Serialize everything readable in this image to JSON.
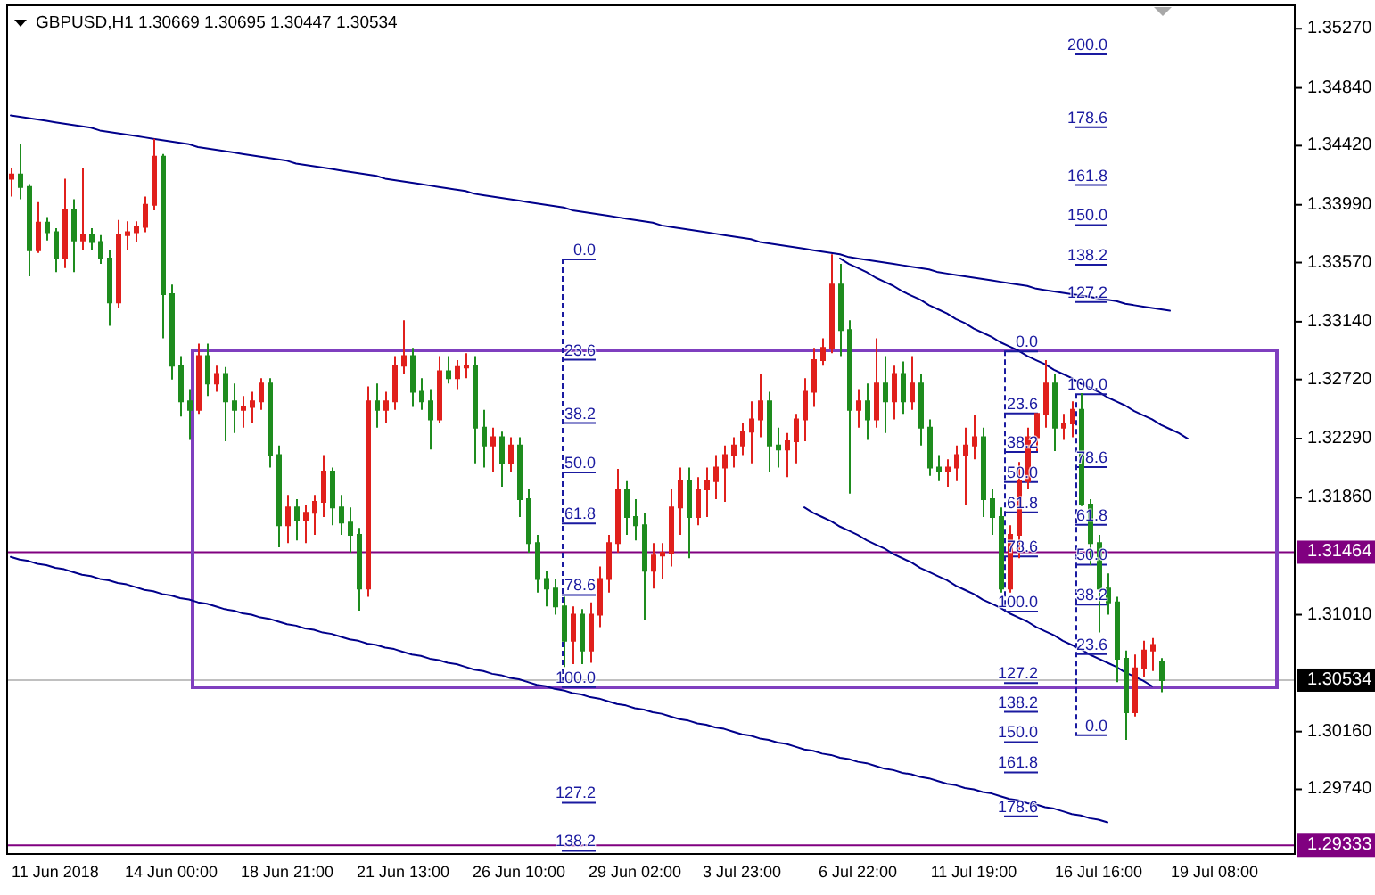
{
  "chart_data": {
    "type": "candlestick",
    "title": "GBPUSD,H1 1.30669 1.30695 1.30447 1.30534",
    "categories": [
      null,
      null,
      null,
      null,
      null,
      "11 Jun 2018",
      null,
      null,
      null,
      null,
      null,
      null,
      null,
      null,
      null,
      null,
      null,
      null,
      "14 Jun 00:00",
      null,
      null,
      null,
      null,
      null,
      null,
      null,
      null,
      null,
      null,
      null,
      null,
      "18 Jun 21:00",
      null,
      null,
      null,
      null,
      null,
      null,
      null,
      null,
      null,
      null,
      null,
      null,
      "21 Jun 13:00",
      null,
      null,
      null,
      null,
      null,
      null,
      null,
      null,
      null,
      null,
      null,
      null,
      "26 Jun 10:00",
      null,
      null,
      null,
      null,
      null,
      null,
      null,
      null,
      null,
      null,
      null,
      null,
      "29 Jun 02:00",
      null,
      null,
      null,
      null,
      null,
      null,
      null,
      null,
      null,
      null,
      null,
      "3 Jul 23:00",
      null,
      null,
      null,
      null,
      null,
      null,
      null,
      null,
      null,
      null,
      null,
      null,
      "6 Jul 22:00",
      null,
      null,
      null,
      null,
      null,
      null,
      null,
      null,
      null,
      null,
      null,
      null,
      "11 Jul 19:00",
      null,
      null,
      null,
      null,
      null,
      null,
      null,
      null,
      null,
      null,
      null,
      null,
      null,
      "16 Jul 16:00",
      null,
      null,
      null,
      null,
      null,
      null,
      null,
      null,
      null,
      null,
      null,
      null,
      "19 Jul 08:00",
      null,
      null,
      null,
      null,
      null,
      null,
      null,
      null,
      null
    ],
    "ohlc": [
      [
        1.3418,
        1.3426,
        1.3405,
        1.3421
      ],
      [
        1.3421,
        1.3443,
        1.3403,
        1.3412
      ],
      [
        1.3412,
        1.3414,
        1.3347,
        1.3366
      ],
      [
        1.3366,
        1.3401,
        1.3364,
        1.3386
      ],
      [
        1.3386,
        1.339,
        1.3373,
        1.3379
      ],
      [
        1.3379,
        1.3382,
        1.335,
        1.336
      ],
      [
        1.336,
        1.3418,
        1.3353,
        1.3395
      ],
      [
        1.3395,
        1.3403,
        1.335,
        1.3373
      ],
      [
        1.3373,
        1.3426,
        1.3366,
        1.3377
      ],
      [
        1.3377,
        1.3382,
        1.3366,
        1.3372
      ],
      [
        1.3372,
        1.3377,
        1.3356,
        1.336
      ],
      [
        1.336,
        1.3366,
        1.3311,
        1.3328
      ],
      [
        1.3328,
        1.3388,
        1.3324,
        1.3377
      ],
      [
        1.3377,
        1.3387,
        1.3366,
        1.3379
      ],
      [
        1.3379,
        1.3387,
        1.3372,
        1.3383
      ],
      [
        1.3383,
        1.3405,
        1.3379,
        1.3399
      ],
      [
        1.3399,
        1.3447,
        1.3395,
        1.3434
      ],
      [
        1.3434,
        1.3436,
        1.3302,
        1.3334
      ],
      [
        1.3334,
        1.3341,
        1.3272,
        1.3282
      ],
      [
        1.3282,
        1.3289,
        1.3245,
        1.3256
      ],
      [
        1.3256,
        1.3265,
        1.3228,
        1.325
      ],
      [
        1.325,
        1.3298,
        1.3247,
        1.3289
      ],
      [
        1.3289,
        1.3298,
        1.326,
        1.3269
      ],
      [
        1.3269,
        1.3282,
        1.3263,
        1.3276
      ],
      [
        1.3276,
        1.3281,
        1.3227,
        1.3256
      ],
      [
        1.3256,
        1.3269,
        1.3233,
        1.325
      ],
      [
        1.325,
        1.326,
        1.3237,
        1.3252
      ],
      [
        1.3252,
        1.3263,
        1.324,
        1.3256
      ],
      [
        1.3256,
        1.3273,
        1.325,
        1.3269
      ],
      [
        1.3269,
        1.3273,
        1.3208,
        1.3217
      ],
      [
        1.3217,
        1.3224,
        1.315,
        1.3166
      ],
      [
        1.3166,
        1.3188,
        1.3153,
        1.3179
      ],
      [
        1.3179,
        1.3185,
        1.3155,
        1.317
      ],
      [
        1.317,
        1.3181,
        1.3153,
        1.3175
      ],
      [
        1.3175,
        1.3188,
        1.3159,
        1.3183
      ],
      [
        1.3183,
        1.3217,
        1.3172,
        1.3205
      ],
      [
        1.3205,
        1.3208,
        1.3166,
        1.3179
      ],
      [
        1.3179,
        1.3188,
        1.3159,
        1.3168
      ],
      [
        1.3168,
        1.3179,
        1.3146,
        1.3159
      ],
      [
        1.3159,
        1.3164,
        1.3104,
        1.312
      ],
      [
        1.312,
        1.3267,
        1.3114,
        1.3256
      ],
      [
        1.3256,
        1.3269,
        1.3237,
        1.325
      ],
      [
        1.325,
        1.3263,
        1.324,
        1.3256
      ],
      [
        1.3256,
        1.3289,
        1.325,
        1.3282
      ],
      [
        1.3282,
        1.3315,
        1.3276,
        1.3289
      ],
      [
        1.3289,
        1.3295,
        1.3252,
        1.3263
      ],
      [
        1.3263,
        1.3273,
        1.325,
        1.3256
      ],
      [
        1.3256,
        1.3265,
        1.3221,
        1.3243
      ],
      [
        1.3243,
        1.3289,
        1.324,
        1.3278
      ],
      [
        1.3278,
        1.3289,
        1.3269,
        1.3273
      ],
      [
        1.3273,
        1.3286,
        1.3265,
        1.3281
      ],
      [
        1.3281,
        1.3291,
        1.3273,
        1.3282
      ],
      [
        1.3282,
        1.3289,
        1.3211,
        1.3237
      ],
      [
        1.3237,
        1.325,
        1.3208,
        1.3224
      ],
      [
        1.3224,
        1.3237,
        1.3205,
        1.323
      ],
      [
        1.323,
        1.3234,
        1.3194,
        1.3211
      ],
      [
        1.3211,
        1.323,
        1.3205,
        1.3224
      ],
      [
        1.3224,
        1.323,
        1.3172,
        1.3185
      ],
      [
        1.3185,
        1.3192,
        1.3146,
        1.3153
      ],
      [
        1.3153,
        1.3159,
        1.3117,
        1.3127
      ],
      [
        1.3127,
        1.3133,
        1.3107,
        1.312
      ],
      [
        1.312,
        1.3127,
        1.3101,
        1.3107
      ],
      [
        1.3107,
        1.3114,
        1.3063,
        1.3082
      ],
      [
        1.3082,
        1.3107,
        1.3065,
        1.3101
      ],
      [
        1.3101,
        1.3105,
        1.3065,
        1.3075
      ],
      [
        1.3075,
        1.311,
        1.3066,
        1.3101
      ],
      [
        1.3101,
        1.3136,
        1.3092,
        1.3127
      ],
      [
        1.3127,
        1.3159,
        1.3117,
        1.3153
      ],
      [
        1.3153,
        1.3207,
        1.3146,
        1.3192
      ],
      [
        1.3192,
        1.3198,
        1.3159,
        1.3172
      ],
      [
        1.3172,
        1.3185,
        1.3155,
        1.3166
      ],
      [
        1.3166,
        1.3175,
        1.3097,
        1.3133
      ],
      [
        1.3133,
        1.3153,
        1.312,
        1.3144
      ],
      [
        1.3144,
        1.3153,
        1.3127,
        1.3146
      ],
      [
        1.3146,
        1.3192,
        1.3136,
        1.3179
      ],
      [
        1.3179,
        1.3208,
        1.3159,
        1.3198
      ],
      [
        1.3198,
        1.3208,
        1.3142,
        1.3172
      ],
      [
        1.3172,
        1.3201,
        1.3166,
        1.3192
      ],
      [
        1.3192,
        1.3208,
        1.3172,
        1.3198
      ],
      [
        1.3198,
        1.3217,
        1.3185,
        1.3208
      ],
      [
        1.3208,
        1.3224,
        1.3183,
        1.3217
      ],
      [
        1.3217,
        1.323,
        1.3208,
        1.3224
      ],
      [
        1.3224,
        1.324,
        1.3217,
        1.3234
      ],
      [
        1.3234,
        1.3256,
        1.3211,
        1.3243
      ],
      [
        1.3243,
        1.3276,
        1.323,
        1.3256
      ],
      [
        1.3256,
        1.3263,
        1.3205,
        1.3224
      ],
      [
        1.3224,
        1.3237,
        1.3208,
        1.3221
      ],
      [
        1.3221,
        1.3233,
        1.3201,
        1.3227
      ],
      [
        1.3227,
        1.3247,
        1.3211,
        1.3243
      ],
      [
        1.3243,
        1.3273,
        1.3227,
        1.3263
      ],
      [
        1.3263,
        1.3295,
        1.3252,
        1.3286
      ],
      [
        1.3286,
        1.3302,
        1.3282,
        1.3295
      ],
      [
        1.3295,
        1.3363,
        1.3291,
        1.3341
      ],
      [
        1.3341,
        1.3356,
        1.3289,
        1.3308
      ],
      [
        1.3308,
        1.3315,
        1.3189,
        1.325
      ],
      [
        1.325,
        1.3265,
        1.3237,
        1.3256
      ],
      [
        1.3256,
        1.3269,
        1.3228,
        1.3243
      ],
      [
        1.3243,
        1.3302,
        1.3237,
        1.3269
      ],
      [
        1.3269,
        1.3289,
        1.3233,
        1.3256
      ],
      [
        1.3256,
        1.3282,
        1.3243,
        1.3276
      ],
      [
        1.3276,
        1.3285,
        1.3247,
        1.3256
      ],
      [
        1.3256,
        1.3289,
        1.325,
        1.3269
      ],
      [
        1.3269,
        1.3276,
        1.3224,
        1.3237
      ],
      [
        1.3237,
        1.3243,
        1.3202,
        1.3208
      ],
      [
        1.3208,
        1.3217,
        1.3198,
        1.3205
      ],
      [
        1.3205,
        1.3214,
        1.3194,
        1.3208
      ],
      [
        1.3208,
        1.3224,
        1.3198,
        1.3217
      ],
      [
        1.3217,
        1.3237,
        1.3181,
        1.3224
      ],
      [
        1.3224,
        1.3246,
        1.3214,
        1.323
      ],
      [
        1.323,
        1.3237,
        1.3172,
        1.3185
      ],
      [
        1.3185,
        1.3192,
        1.3159,
        1.3172
      ],
      [
        1.3172,
        1.3179,
        1.3117,
        1.312
      ],
      [
        1.312,
        1.3166,
        1.3117,
        1.3159
      ],
      [
        1.3159,
        1.3212,
        1.3142,
        1.3198
      ],
      [
        1.3198,
        1.3237,
        1.3192,
        1.323
      ],
      [
        1.323,
        1.3247,
        1.322,
        1.3247
      ],
      [
        1.3247,
        1.3286,
        1.3237,
        1.3269
      ],
      [
        1.3269,
        1.3276,
        1.322,
        1.3237
      ],
      [
        1.3237,
        1.3247,
        1.3228,
        1.324
      ],
      [
        1.324,
        1.3256,
        1.323,
        1.325
      ],
      [
        1.325,
        1.3262,
        1.318,
        1.3181
      ],
      [
        1.3181,
        1.3185,
        1.3137,
        1.3153
      ],
      [
        1.3153,
        1.3159,
        1.3088,
        1.312
      ],
      [
        1.312,
        1.3131,
        1.3101,
        1.311
      ],
      [
        1.311,
        1.3114,
        1.3052,
        1.3069
      ],
      [
        1.3069,
        1.3075,
        1.301,
        1.303
      ],
      [
        1.303,
        1.3072,
        1.3027,
        1.3062
      ],
      [
        1.3062,
        1.3082,
        1.3056,
        1.3075
      ],
      [
        1.3075,
        1.3084,
        1.306,
        1.3079
      ],
      [
        1.30669,
        1.30695,
        1.30447,
        1.30534
      ],
      null,
      null,
      null,
      null,
      null,
      null,
      null,
      null,
      null,
      null,
      null,
      null,
      null,
      null,
      null
    ],
    "colors": [
      "#e0201c",
      "#1e8c1e",
      "#1e8c1e",
      "#e0201c",
      "#1e8c1e",
      "#1e8c1e",
      "#e0201c",
      "#1e8c1e",
      "#e0201c",
      "#1e8c1e",
      "#1e8c1e",
      "#1e8c1e",
      "#e0201c",
      "#e0201c",
      "#e0201c",
      "#e0201c",
      "#e0201c",
      "#1e8c1e",
      "#1e8c1e",
      "#1e8c1e",
      "#1e8c1e",
      "#e0201c",
      "#1e8c1e",
      "#e0201c",
      "#1e8c1e",
      "#1e8c1e",
      "#e0201c",
      "#e0201c",
      "#e0201c",
      "#1e8c1e",
      "#1e8c1e",
      "#e0201c",
      "#1e8c1e",
      "#e0201c",
      "#e0201c",
      "#e0201c",
      "#1e8c1e",
      "#1e8c1e",
      "#1e8c1e",
      "#1e8c1e",
      "#e0201c",
      "#1e8c1e",
      "#e0201c",
      "#e0201c",
      "#e0201c",
      "#1e8c1e",
      "#1e8c1e",
      "#1e8c1e",
      "#e0201c",
      "#1e8c1e",
      "#e0201c",
      "#e0201c",
      "#1e8c1e",
      "#1e8c1e",
      "#e0201c",
      "#1e8c1e",
      "#e0201c",
      "#1e8c1e",
      "#1e8c1e",
      "#1e8c1e",
      "#1e8c1e",
      "#1e8c1e",
      "#1e8c1e",
      "#e0201c",
      "#1e8c1e",
      "#e0201c",
      "#e0201c",
      "#e0201c",
      "#e0201c",
      "#1e8c1e",
      "#1e8c1e",
      "#1e8c1e",
      "#e0201c",
      "#e0201c",
      "#e0201c",
      "#e0201c",
      "#1e8c1e",
      "#e0201c",
      "#e0201c",
      "#e0201c",
      "#e0201c",
      "#e0201c",
      "#e0201c",
      "#e0201c",
      "#e0201c",
      "#1e8c1e",
      "#1e8c1e",
      "#e0201c",
      "#e0201c",
      "#e0201c",
      "#e0201c",
      "#e0201c",
      "#e0201c",
      "#1e8c1e",
      "#1e8c1e",
      "#e0201c",
      "#1e8c1e",
      "#e0201c",
      "#1e8c1e",
      "#e0201c",
      "#1e8c1e",
      "#e0201c",
      "#1e8c1e",
      "#1e8c1e",
      "#1e8c1e",
      "#e0201c",
      "#e0201c",
      "#e0201c",
      "#e0201c",
      "#1e8c1e",
      "#1e8c1e",
      "#1e8c1e",
      "#e0201c",
      "#e0201c",
      "#e0201c",
      "#e0201c",
      "#e0201c",
      "#1e8c1e",
      "#e0201c",
      "#e0201c",
      "#1e8c1e",
      "#1e8c1e",
      "#1e8c1e",
      "#1e8c1e",
      "#1e8c1e",
      "#1e8c1e",
      "#e0201c",
      "#e0201c",
      "#e0201c",
      "#1e8c1e",
      null,
      null,
      null,
      null,
      null,
      null,
      null,
      null,
      null,
      null,
      null,
      null,
      null,
      null,
      null
    ],
    "series": [
      {
        "type": "line",
        "color": "#00008b",
        "line_style": "solid",
        "values": [
          1.3464,
          1.3463,
          1.3462,
          1.3461,
          1.346,
          1.3459,
          1.3458,
          1.3457,
          1.3456,
          1.3455,
          1.3453,
          1.3452,
          1.3451,
          1.345,
          1.3449,
          1.3448,
          1.3447,
          1.3446,
          1.3445,
          1.3444,
          1.3443,
          1.3441,
          1.344,
          1.3439,
          1.3438,
          1.3437,
          1.3436,
          1.3435,
          1.3434,
          1.3433,
          1.3432,
          1.3431,
          1.3429,
          1.3428,
          1.3427,
          1.3426,
          1.3425,
          1.3424,
          1.3423,
          1.3422,
          1.3421,
          1.342,
          1.3418,
          1.3417,
          1.3416,
          1.3415,
          1.3414,
          1.3413,
          1.3412,
          1.3411,
          1.341,
          1.3409,
          1.3407,
          1.3406,
          1.3405,
          1.3404,
          1.3403,
          1.3402,
          1.3401,
          1.34,
          1.3399,
          1.3398,
          1.3397,
          1.3395,
          1.3394,
          1.3393,
          1.3392,
          1.3391,
          1.339,
          1.3389,
          1.3388,
          1.3387,
          1.3386,
          1.3384,
          1.3383,
          1.3382,
          1.3381,
          1.338,
          1.3379,
          1.3378,
          1.3377,
          1.3376,
          1.3375,
          1.3374,
          1.3372,
          1.3371,
          1.337,
          1.3369,
          1.3368,
          1.3367,
          1.3366,
          1.3365,
          1.3364,
          1.3363,
          1.3361,
          1.336,
          1.3359,
          1.3358,
          1.3357,
          1.3356,
          1.3355,
          1.3354,
          1.3353,
          1.3352,
          1.335,
          1.3349,
          1.3348,
          1.3347,
          1.3346,
          1.3345,
          1.3344,
          1.3343,
          1.3342,
          1.3341,
          1.334,
          1.3338,
          1.3337,
          1.3336,
          1.3335,
          1.3334,
          1.3333,
          1.3332,
          1.3331,
          1.333,
          1.3329,
          1.3327,
          1.3326,
          1.3325,
          1.3324,
          1.3323,
          1.3322,
          null,
          null,
          null,
          null,
          null,
          null,
          null,
          null,
          null,
          null,
          null,
          null,
          null,
          null
        ]
      },
      {
        "type": "line",
        "color": "#00008b",
        "line_style": "solid",
        "values": [
          1.3143,
          1.3141,
          1.314,
          1.3138,
          1.3137,
          1.3135,
          1.3134,
          1.3132,
          1.313,
          1.3129,
          1.3127,
          1.3126,
          1.3124,
          1.3123,
          1.3121,
          1.3119,
          1.3118,
          1.3116,
          1.3115,
          1.3113,
          1.3112,
          1.311,
          1.3109,
          1.3107,
          1.3105,
          1.3104,
          1.3102,
          1.3101,
          1.3099,
          1.3098,
          1.3096,
          1.3094,
          1.3093,
          1.3091,
          1.309,
          1.3088,
          1.3087,
          1.3085,
          1.3083,
          1.3082,
          1.308,
          1.3079,
          1.3077,
          1.3076,
          1.3074,
          1.3072,
          1.3071,
          1.3069,
          1.3068,
          1.3066,
          1.3065,
          1.3063,
          1.3061,
          1.306,
          1.3058,
          1.3057,
          1.3055,
          1.3054,
          1.3052,
          1.305,
          1.3049,
          1.3047,
          1.3046,
          1.3044,
          1.3043,
          1.3041,
          1.304,
          1.3038,
          1.3036,
          1.3035,
          1.3033,
          1.3032,
          1.303,
          1.3029,
          1.3027,
          1.3025,
          1.3024,
          1.3022,
          1.3021,
          1.3019,
          1.3018,
          1.3016,
          1.3014,
          1.3013,
          1.3011,
          1.301,
          1.3008,
          1.3007,
          1.3005,
          1.3003,
          1.3002,
          1.3,
          1.2999,
          1.2997,
          1.2996,
          1.2994,
          1.2993,
          1.2991,
          1.2989,
          1.2988,
          1.2986,
          1.2985,
          1.2983,
          1.2982,
          1.298,
          1.2978,
          1.2977,
          1.2975,
          1.2974,
          1.2972,
          1.2971,
          1.2969,
          1.2967,
          1.2966,
          1.2964,
          1.2963,
          1.2961,
          1.296,
          1.2958,
          1.2956,
          1.2955,
          1.2953,
          1.2952,
          1.295,
          null,
          null,
          null,
          null,
          null,
          null,
          null,
          null,
          null,
          null,
          null,
          null,
          null,
          null,
          null,
          null,
          null,
          null,
          null,
          null,
          null
        ]
      },
      {
        "type": "line",
        "color": "#00008b",
        "line_style": "solid",
        "values": [
          null,
          null,
          null,
          null,
          null,
          null,
          null,
          null,
          null,
          null,
          null,
          null,
          null,
          null,
          null,
          null,
          null,
          null,
          null,
          null,
          null,
          null,
          null,
          null,
          null,
          null,
          null,
          null,
          null,
          null,
          null,
          null,
          null,
          null,
          null,
          null,
          null,
          null,
          null,
          null,
          null,
          null,
          null,
          null,
          null,
          null,
          null,
          null,
          null,
          null,
          null,
          null,
          null,
          null,
          null,
          null,
          null,
          null,
          null,
          null,
          null,
          null,
          null,
          null,
          null,
          null,
          null,
          null,
          null,
          null,
          null,
          null,
          null,
          null,
          null,
          null,
          null,
          null,
          null,
          null,
          null,
          null,
          null,
          null,
          null,
          null,
          null,
          null,
          null,
          null,
          null,
          null,
          null,
          1.336,
          1.3356,
          1.3353,
          1.335,
          1.3346,
          1.3343,
          1.334,
          1.3336,
          1.3333,
          1.333,
          1.3326,
          1.3323,
          1.332,
          1.3316,
          1.3313,
          1.3309,
          1.3306,
          1.3303,
          1.3299,
          1.3296,
          1.3293,
          1.3289,
          1.3286,
          1.3283,
          1.3279,
          1.3276,
          1.3273,
          1.3269,
          1.3266,
          1.3263,
          1.3259,
          1.3256,
          1.3253,
          1.3249,
          1.3246,
          1.3243,
          1.3239,
          1.3236,
          1.3233,
          1.3229,
          null,
          null,
          null,
          null,
          null,
          null,
          null,
          null,
          null,
          null,
          null,
          null
        ]
      },
      {
        "type": "line",
        "color": "#00008b",
        "line_style": "solid",
        "values": [
          null,
          null,
          null,
          null,
          null,
          null,
          null,
          null,
          null,
          null,
          null,
          null,
          null,
          null,
          null,
          null,
          null,
          null,
          null,
          null,
          null,
          null,
          null,
          null,
          null,
          null,
          null,
          null,
          null,
          null,
          null,
          null,
          null,
          null,
          null,
          null,
          null,
          null,
          null,
          null,
          null,
          null,
          null,
          null,
          null,
          null,
          null,
          null,
          null,
          null,
          null,
          null,
          null,
          null,
          null,
          null,
          null,
          null,
          null,
          null,
          null,
          null,
          null,
          null,
          null,
          null,
          null,
          null,
          null,
          null,
          null,
          null,
          null,
          null,
          null,
          null,
          null,
          null,
          null,
          null,
          null,
          null,
          null,
          null,
          null,
          null,
          null,
          null,
          null,
          1.3179,
          1.3175,
          1.3172,
          1.3169,
          1.3165,
          1.3162,
          1.3159,
          1.3155,
          1.3152,
          1.3149,
          1.3145,
          1.3142,
          1.3139,
          1.3135,
          1.3132,
          1.3129,
          1.3126,
          1.3122,
          1.3119,
          1.3116,
          1.3112,
          1.3109,
          1.3106,
          1.3102,
          1.3099,
          1.3096,
          1.3092,
          1.3089,
          1.3086,
          1.3082,
          1.3079,
          1.3076,
          1.3072,
          1.3069,
          1.3066,
          1.3063,
          1.3059,
          1.3056,
          1.3053,
          1.3049,
          null,
          null,
          null,
          null,
          null,
          null,
          null,
          null,
          null,
          null,
          null,
          null,
          null,
          null,
          null,
          null
        ]
      }
    ],
    "ref_lines": [
      {
        "axis": "y",
        "value": 1.31464,
        "label": "1.31464",
        "color": "#800080"
      },
      {
        "axis": "y",
        "value": 1.30534,
        "label": "1.30534",
        "color": "#c0c0c0"
      },
      {
        "axis": "y",
        "value": 1.29333,
        "label": "1.29333",
        "color": "#800080"
      }
    ],
    "annotations": [
      "0.0",
      "23.6",
      "38.2",
      "50.0",
      "61.8",
      "78.6",
      "100.0",
      "127.2",
      "138.2",
      "0.0",
      "23.6",
      "38.2",
      "50.0",
      "61.8",
      "78.6",
      "100.0",
      "127.2",
      "138.2",
      "150.0",
      "161.8",
      "178.6",
      "0.0",
      "23.6",
      "38.2",
      "50.0",
      "61.8",
      "78.6",
      "100.0",
      "127.2",
      "138.2",
      "150.0",
      "161.8",
      "178.6",
      "200.0"
    ],
    "ylim": [
      1.2927,
      1.3544
    ],
    "yticks": [
      {
        "value": 1.2974,
        "label": "1.29740"
      },
      {
        "value": 1.3016,
        "label": "1.30160"
      },
      {
        "value": 1.3101,
        "label": "1.31010"
      },
      {
        "value": 1.3186,
        "label": "1.31860"
      },
      {
        "value": 1.3229,
        "label": "1.32290"
      },
      {
        "value": 1.3272,
        "label": "1.32720"
      },
      {
        "value": 1.3314,
        "label": "1.33140"
      },
      {
        "value": 1.3357,
        "label": "1.33570"
      },
      {
        "value": 1.3399,
        "label": "1.33990"
      },
      {
        "value": 1.3442,
        "label": "1.34420"
      },
      {
        "value": 1.3484,
        "label": "1.34840"
      },
      {
        "value": 1.3527,
        "label": "1.35270"
      }
    ]
  }
}
